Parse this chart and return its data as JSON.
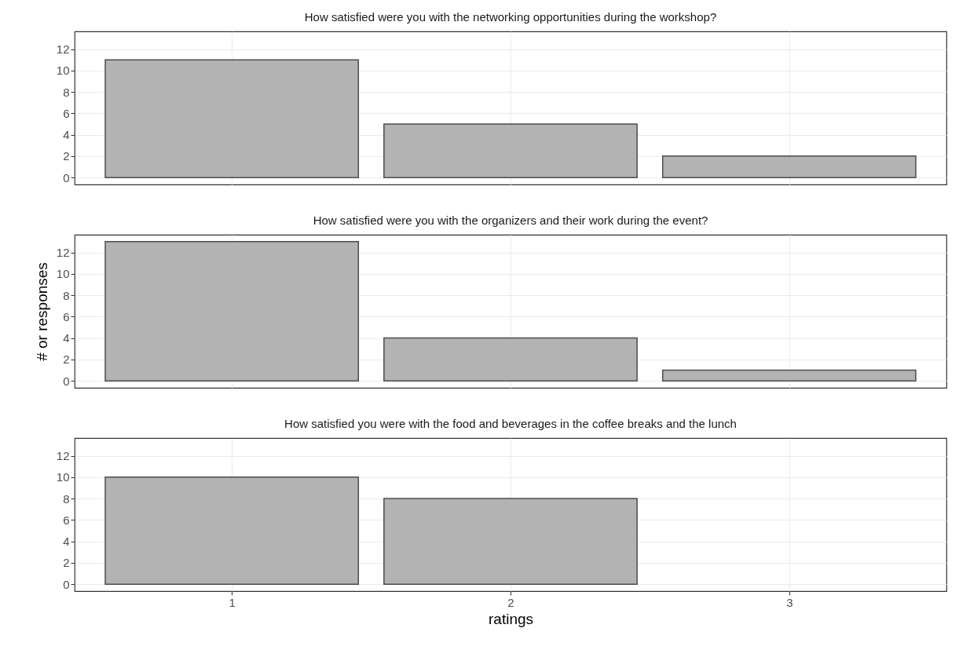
{
  "chart_data": [
    {
      "type": "bar",
      "title": "How satisfied were you with the networking opportunities during the workshop?",
      "x": [
        1,
        2,
        3
      ],
      "values": [
        11,
        5,
        2
      ],
      "color": "#b3b3b3",
      "xlim": [
        0.45,
        3.55
      ],
      "xticks": [
        1,
        2,
        3
      ],
      "ylim": [
        -0.65,
        13.65
      ],
      "yticks": [
        0,
        2,
        4,
        6,
        8,
        10,
        12
      ],
      "grid": true,
      "tick_labels": "y"
    },
    {
      "type": "bar",
      "title": "How satisfied were you with the organizers and their work during the event?",
      "ylabel": "# or responses",
      "x": [
        1,
        2,
        3
      ],
      "values": [
        13,
        4,
        1
      ],
      "color": "#b3b3b3",
      "xlim": [
        0.45,
        3.55
      ],
      "xticks": [
        1,
        2,
        3
      ],
      "ylim": [
        -0.65,
        13.65
      ],
      "yticks": [
        0,
        2,
        4,
        6,
        8,
        10,
        12
      ],
      "grid": true,
      "tick_labels": "y"
    },
    {
      "type": "bar",
      "title": "How satisfied you were with the food and beverages in the coffee breaks and the lunch",
      "xlabel": "ratings",
      "x": [
        1,
        2
      ],
      "values": [
        10,
        8
      ],
      "color": "#b3b3b3",
      "xlim": [
        0.45,
        3.55
      ],
      "xticks": [
        1,
        2,
        3
      ],
      "ylim": [
        -0.65,
        13.65
      ],
      "yticks": [
        0,
        2,
        4,
        6,
        8,
        10,
        12
      ],
      "grid": true
    }
  ]
}
